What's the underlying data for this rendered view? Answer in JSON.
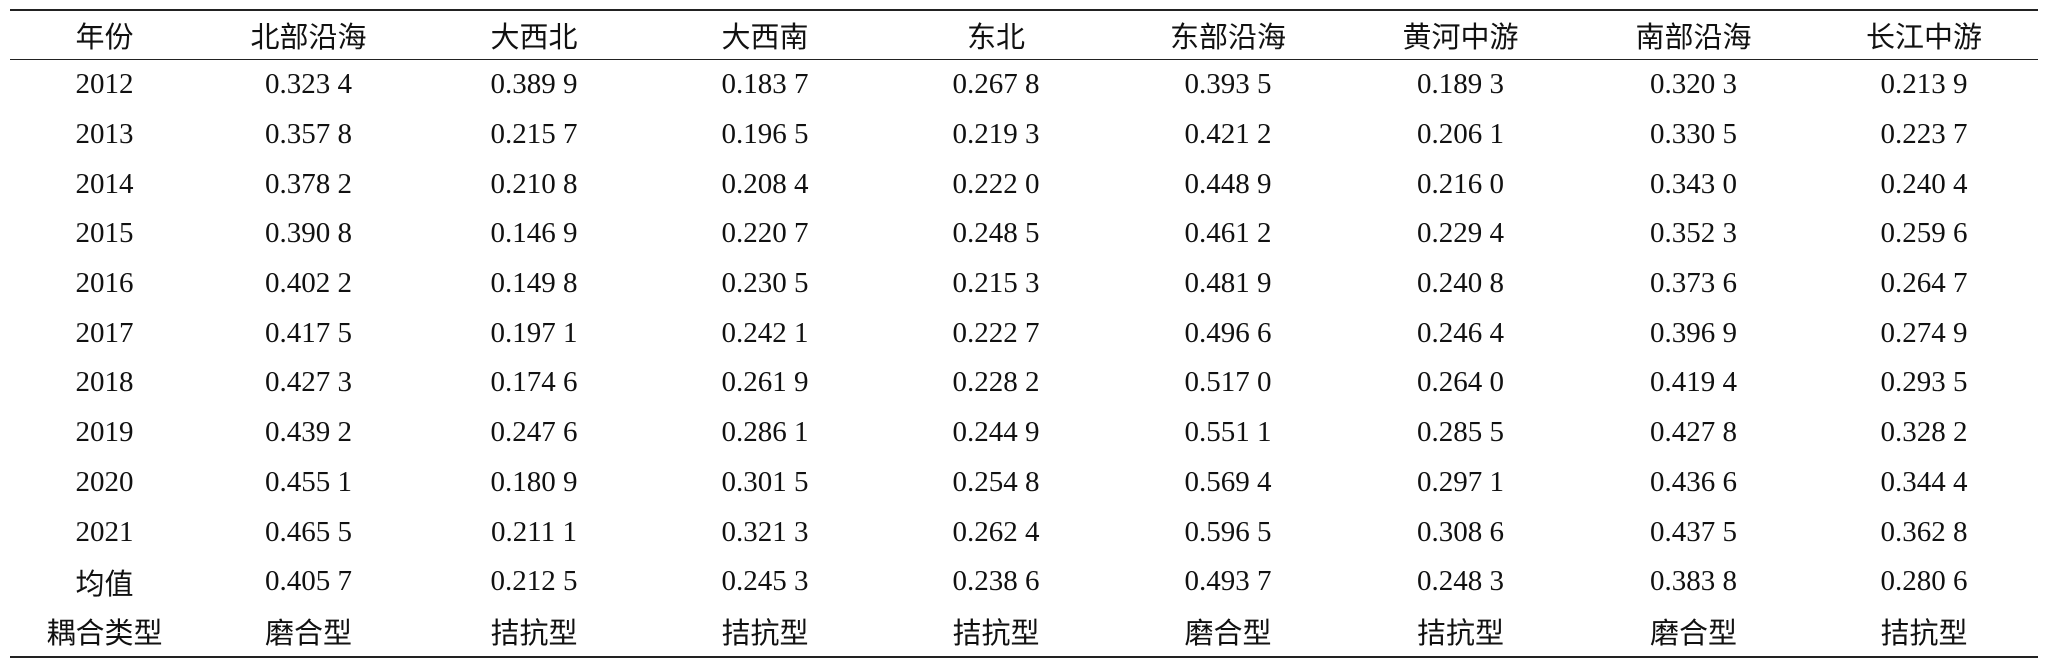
{
  "table": {
    "header": [
      "年份",
      "北部沿海",
      "大西北",
      "大西南",
      "东北",
      "东部沿海",
      "黄河中游",
      "南部沿海",
      "长江中游"
    ],
    "rows": [
      [
        "2012",
        "0.323 4",
        "0.389 9",
        "0.183 7",
        "0.267 8",
        "0.393 5",
        "0.189 3",
        "0.320 3",
        "0.213 9"
      ],
      [
        "2013",
        "0.357 8",
        "0.215 7",
        "0.196 5",
        "0.219 3",
        "0.421 2",
        "0.206 1",
        "0.330 5",
        "0.223 7"
      ],
      [
        "2014",
        "0.378 2",
        "0.210 8",
        "0.208 4",
        "0.222 0",
        "0.448 9",
        "0.216 0",
        "0.343 0",
        "0.240 4"
      ],
      [
        "2015",
        "0.390 8",
        "0.146 9",
        "0.220 7",
        "0.248 5",
        "0.461 2",
        "0.229 4",
        "0.352 3",
        "0.259 6"
      ],
      [
        "2016",
        "0.402 2",
        "0.149 8",
        "0.230 5",
        "0.215 3",
        "0.481 9",
        "0.240 8",
        "0.373 6",
        "0.264 7"
      ],
      [
        "2017",
        "0.417 5",
        "0.197 1",
        "0.242 1",
        "0.222 7",
        "0.496 6",
        "0.246 4",
        "0.396 9",
        "0.274 9"
      ],
      [
        "2018",
        "0.427 3",
        "0.174 6",
        "0.261 9",
        "0.228 2",
        "0.517 0",
        "0.264 0",
        "0.419 4",
        "0.293 5"
      ],
      [
        "2019",
        "0.439 2",
        "0.247 6",
        "0.286 1",
        "0.244 9",
        "0.551 1",
        "0.285 5",
        "0.427 8",
        "0.328 2"
      ],
      [
        "2020",
        "0.455 1",
        "0.180 9",
        "0.301 5",
        "0.254 8",
        "0.569 4",
        "0.297 1",
        "0.436 6",
        "0.344 4"
      ],
      [
        "2021",
        "0.465 5",
        "0.211 1",
        "0.321 3",
        "0.262 4",
        "0.596 5",
        "0.308 6",
        "0.437 5",
        "0.362 8"
      ],
      [
        "均值",
        "0.405 7",
        "0.212 5",
        "0.245 3",
        "0.238 6",
        "0.493 7",
        "0.248 3",
        "0.383 8",
        "0.280 6"
      ],
      [
        "耦合类型",
        "磨合型",
        "拮抗型",
        "拮抗型",
        "拮抗型",
        "磨合型",
        "拮抗型",
        "磨合型",
        "拮抗型"
      ]
    ]
  }
}
